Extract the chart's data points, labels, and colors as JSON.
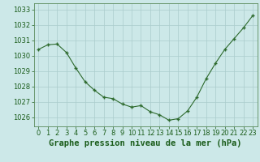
{
  "hours": [
    0,
    1,
    2,
    3,
    4,
    5,
    6,
    7,
    8,
    9,
    10,
    11,
    12,
    13,
    14,
    15,
    16,
    17,
    18,
    19,
    20,
    21,
    22,
    23
  ],
  "pressure": [
    1030.4,
    1030.7,
    1030.75,
    1030.2,
    1029.2,
    1028.3,
    1027.75,
    1027.3,
    1027.2,
    1026.85,
    1026.65,
    1026.75,
    1026.35,
    1026.15,
    1025.8,
    1025.9,
    1026.4,
    1027.3,
    1028.5,
    1029.5,
    1030.4,
    1031.1,
    1031.8,
    1032.6
  ],
  "line_color": "#2d6a2d",
  "marker": "+",
  "marker_size": 3,
  "marker_lw": 1.0,
  "line_width": 0.8,
  "bg_color": "#cce8e8",
  "grid_color": "#aacccc",
  "title": "Graphe pression niveau de la mer (hPa)",
  "title_color": "#1a5c1a",
  "title_fontsize": 7.5,
  "ylabel_ticks": [
    1026,
    1027,
    1028,
    1029,
    1030,
    1031,
    1032,
    1033
  ],
  "ylim": [
    1025.4,
    1033.4
  ],
  "xlim": [
    -0.5,
    23.5
  ],
  "tick_color": "#1a5c1a",
  "tick_fontsize": 6.0,
  "spine_color": "#5a8a5a"
}
